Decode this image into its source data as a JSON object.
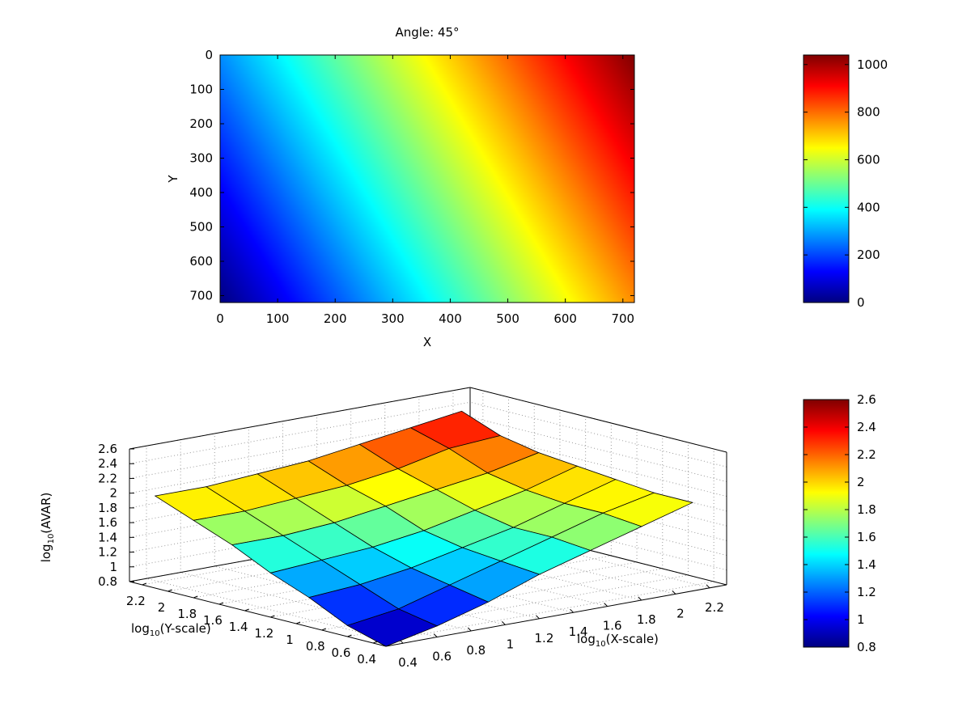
{
  "chart_data": [
    {
      "type": "heatmap",
      "title": "Angle: 45°",
      "xlabel": "X",
      "ylabel": "Y",
      "xlim": [
        0,
        720
      ],
      "ylim": [
        720,
        0
      ],
      "x_ticks": [
        0,
        100,
        200,
        300,
        400,
        500,
        600,
        700
      ],
      "y_ticks": [
        0,
        100,
        200,
        300,
        400,
        500,
        600,
        700
      ],
      "z_formula": "z = x + (720 - y)",
      "clim": [
        0,
        1040
      ],
      "colormap": "jet",
      "colorbar_ticks": [
        0,
        200,
        400,
        600,
        800,
        1000
      ],
      "grid": false
    },
    {
      "type": "surface",
      "xlabel": "log10(X-scale)",
      "ylabel": "log10(Y-scale)",
      "zlabel": "log10(AVAR)",
      "xlabel_main": "log",
      "xlabel_sub": "10",
      "xlabel_rest": "(X-scale)",
      "ylabel_main": "log",
      "ylabel_sub": "10",
      "ylabel_rest": "(Y-scale)",
      "zlabel_main": "log",
      "zlabel_sub": "10",
      "zlabel_rest": "(AVAR)",
      "xlim": [
        0.3,
        2.3
      ],
      "ylim": [
        0.3,
        2.3
      ],
      "zlim": [
        0.8,
        2.6
      ],
      "x_ticks": [
        "0.4",
        "0.6",
        "0.8",
        "1",
        "1.2",
        "1.4",
        "1.6",
        "1.8",
        "2",
        "2.2"
      ],
      "y_ticks": [
        "0.4",
        "0.6",
        "0.8",
        "1",
        "1.2",
        "1.4",
        "1.6",
        "1.8",
        "2",
        "2.2"
      ],
      "z_ticks": [
        "0.8",
        "1",
        "1.2",
        "1.4",
        "1.6",
        "1.8",
        "2",
        "2.2",
        "2.4",
        "2.6"
      ],
      "x": [
        0.3,
        0.6,
        0.9,
        1.2,
        1.5,
        1.8,
        2.1
      ],
      "y": [
        0.3,
        0.6,
        0.9,
        1.2,
        1.5,
        1.8,
        2.1
      ],
      "z": [
        [
          0.8,
          0.95,
          1.2,
          1.4,
          1.65,
          1.85,
          2.05
        ],
        [
          0.95,
          1.05,
          1.25,
          1.45,
          1.65,
          1.85,
          2.05
        ],
        [
          1.15,
          1.25,
          1.35,
          1.5,
          1.7,
          1.9,
          2.1
        ],
        [
          1.4,
          1.45,
          1.5,
          1.6,
          1.8,
          1.95,
          2.15
        ],
        [
          1.6,
          1.65,
          1.65,
          1.75,
          1.9,
          2.05,
          2.25
        ],
        [
          1.8,
          1.85,
          1.85,
          1.9,
          2.0,
          2.2,
          2.35
        ],
        [
          2.0,
          2.0,
          2.05,
          2.1,
          2.15,
          2.25,
          2.45
        ]
      ],
      "clim": [
        0.8,
        2.6
      ],
      "colormap": "jet",
      "colorbar_ticks": [
        "0.8",
        "1",
        "1.2",
        "1.4",
        "1.6",
        "1.8",
        "2",
        "2.2",
        "2.4",
        "2.6"
      ],
      "grid": true
    }
  ]
}
